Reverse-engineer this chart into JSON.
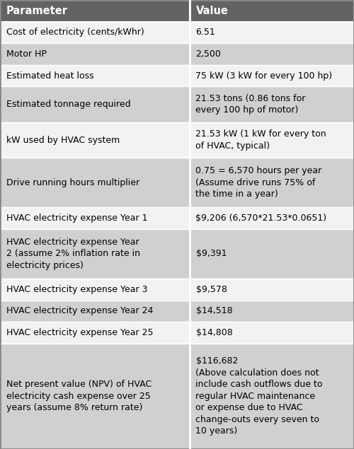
{
  "header": [
    "Parameter",
    "Value"
  ],
  "rows": [
    [
      "Cost of electricity (cents/kWhr)",
      "6.51"
    ],
    [
      "Motor HP",
      "2,500"
    ],
    [
      "Estimated heat loss",
      "75 kW (3 kW for every 100 hp)"
    ],
    [
      "Estimated tonnage required",
      "21.53 tons (0.86 tons for\nevery 100 hp of motor)"
    ],
    [
      "kW used by HVAC system",
      "21.53 kW (1 kW for every ton\nof HVAC, typical)"
    ],
    [
      "Drive running hours multiplier",
      "0.75 = 6,570 hours per year\n(Assume drive runs 75% of\nthe time in a year)"
    ],
    [
      "HVAC electricity expense Year 1",
      "$9,206 (6,570*21.53*0.0651)"
    ],
    [
      "HVAC electricity expense Year\n2 (assume 2% inflation rate in\nelectricity prices)",
      "$9,391"
    ],
    [
      "HVAC electricity expense Year 3",
      "$9,578"
    ],
    [
      "HVAC electricity expense Year 24",
      "$14,518"
    ],
    [
      "HVAC electricity expense Year 25",
      "$14,808"
    ],
    [
      "Net present value (NPV) of HVAC\nelectricity cash expense over 25\nyears (assume 8% return rate)",
      "$116,682\n(Above calculation does not\ninclude cash outflows due to\nregular HVAC maintenance\nor expense due to HVAC\nchange-outs every seven to\n10 years)"
    ]
  ],
  "col_split": 0.535,
  "header_bg": "#636363",
  "header_fg": "#ffffff",
  "row_bg_light": "#f2f2f2",
  "row_bg_dark": "#d0d0d0",
  "border_color": "#ffffff",
  "font_size": 9.0,
  "header_font_size": 10.5,
  "fig_width": 5.0,
  "fig_height": 6.35,
  "dpi": 100
}
